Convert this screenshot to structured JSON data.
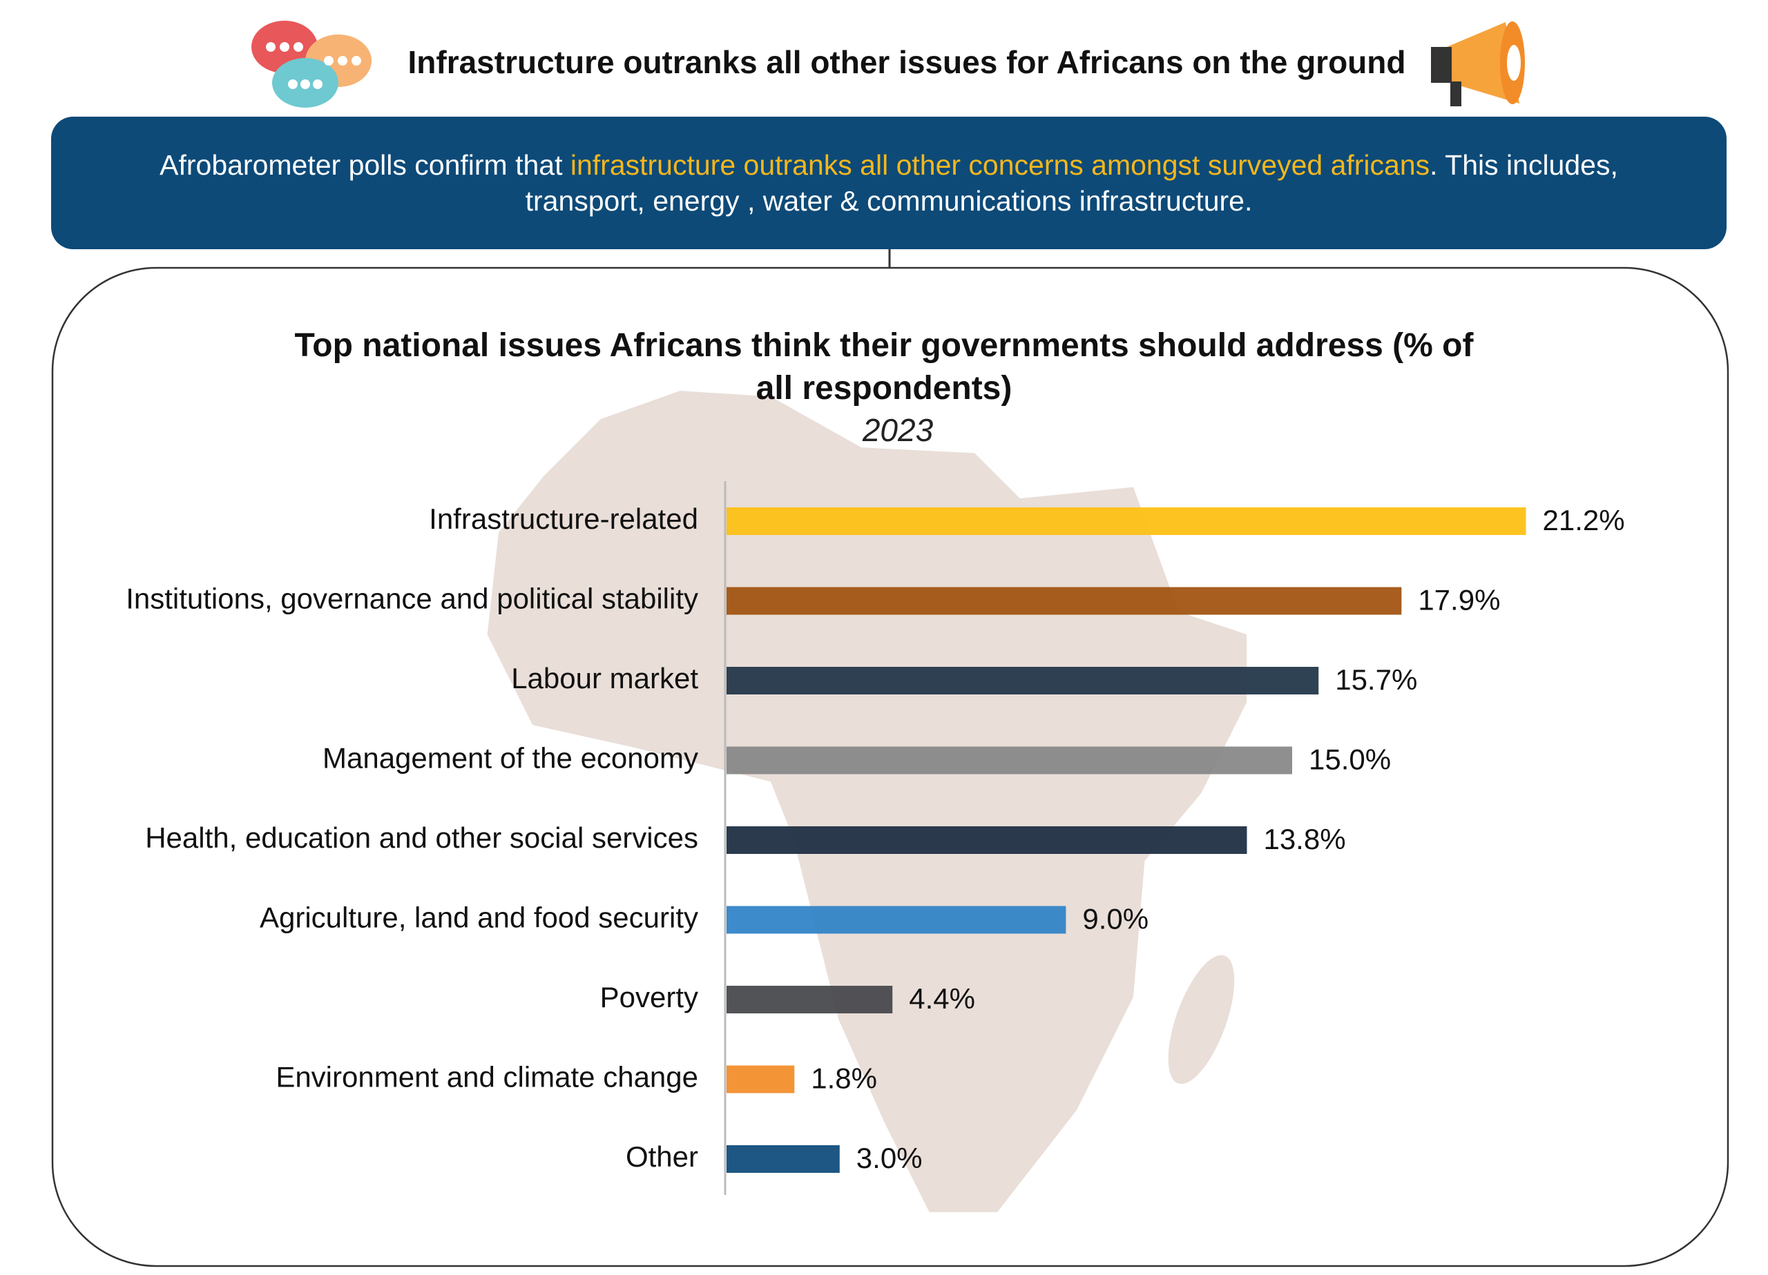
{
  "header": {
    "title": "Infrastructure outranks all other issues for Africans on the ground"
  },
  "banner": {
    "text_before": "Afrobarometer polls confirm that ",
    "highlight": "infrastructure outranks all other concerns amongst surveyed africans",
    "text_after": ". This includes, transport, energy , water & communications infrastructure."
  },
  "chart_data": {
    "type": "bar",
    "orientation": "horizontal",
    "title": "Top national issues Africans think their governments should address (% of all respondents)",
    "subtitle": "2023",
    "categories": [
      "Infrastructure-related",
      "Institutions, governance and political stability",
      "Labour market",
      "Management of the economy",
      "Health, education and other social services",
      "Agriculture, land and food security",
      "Poverty",
      "Environment and climate change",
      "Other"
    ],
    "values": [
      21.2,
      17.9,
      15.7,
      15.0,
      13.8,
      9.0,
      4.4,
      1.8,
      3.0
    ],
    "value_labels": [
      "21.2%",
      "17.9%",
      "15.7%",
      "15.0%",
      "13.8%",
      "9.0%",
      "4.4%",
      "1.8%",
      "3.0%"
    ],
    "colors": [
      "#fdc010",
      "#a0520e",
      "#1f3446",
      "#878787",
      "#1b2c3f",
      "#2e82c6",
      "#45464a",
      "#f28c28",
      "#0d4a7a"
    ]
  }
}
